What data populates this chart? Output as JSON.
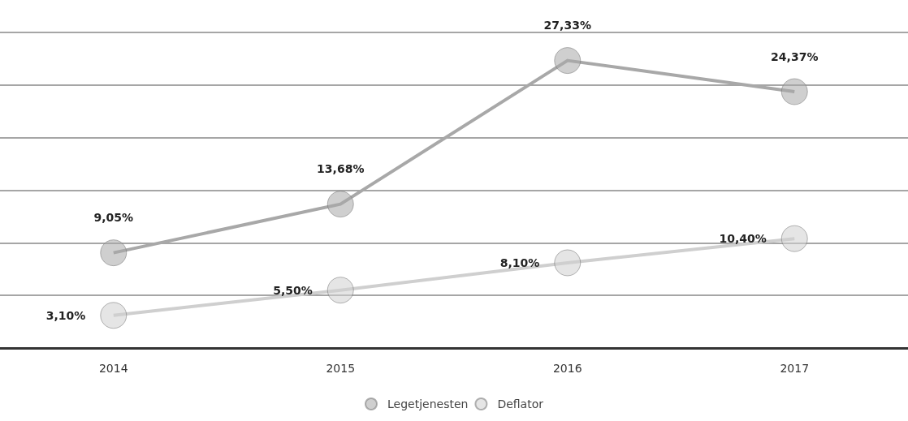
{
  "chart_data": {
    "type": "line",
    "categories": [
      "2014",
      "2015",
      "2016",
      "2017"
    ],
    "series": [
      {
        "name": "Legetjenesten",
        "color": "#a8a8a8",
        "values": [
          9.05,
          13.68,
          27.33,
          24.37
        ],
        "value_labels": [
          "9,05%",
          "13,68%",
          "27,33%",
          "24,37%"
        ]
      },
      {
        "name": "Deflator",
        "color": "#cfcfcf",
        "values": [
          3.1,
          5.5,
          8.1,
          10.4
        ],
        "value_labels": [
          "3,10%",
          "5,50%",
          "8,10%",
          "10,40%"
        ]
      }
    ],
    "tick_labels": "x",
    "grid": "y",
    "legend": "bottom",
    "marker": "circle",
    "line_style": "solid"
  }
}
